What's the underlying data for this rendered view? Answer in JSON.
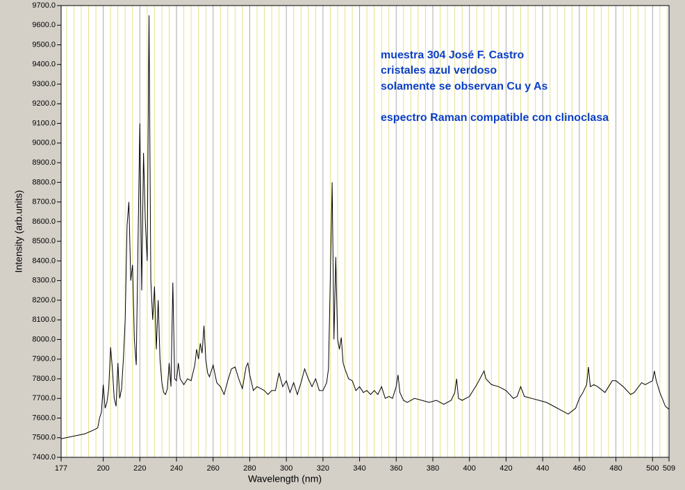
{
  "chart_data": {
    "type": "line",
    "annotation": [
      "muestra 304 José F. Castro",
      "cristales azul verdoso",
      "solamente se observan Cu y As",
      "espectro Raman compatible con clinoclasa"
    ],
    "xlabel": "Wavelength (nm)",
    "ylabel": "Intensity (arb.units)",
    "xlim": [
      177,
      509
    ],
    "ylim": [
      7400,
      9700
    ],
    "xticks": [
      177,
      200,
      220,
      240,
      260,
      280,
      300,
      320,
      340,
      360,
      380,
      400,
      420,
      440,
      460,
      480,
      500,
      509
    ],
    "x_minor_grid": [
      180,
      184,
      188,
      192,
      196,
      204,
      208,
      212,
      216,
      224,
      228,
      232,
      236,
      244,
      248,
      252,
      256,
      264,
      268,
      272,
      276,
      284,
      288,
      292,
      296,
      304,
      308,
      312,
      316,
      324,
      328,
      332,
      336,
      344,
      348,
      352,
      356,
      364,
      368,
      372,
      376,
      384,
      388,
      392,
      396,
      404,
      408,
      412,
      416,
      424,
      428,
      432,
      436,
      444,
      448,
      452,
      456,
      464,
      468,
      472,
      476,
      484,
      488,
      492,
      496,
      504,
      508
    ],
    "yticks": [
      {
        "value": 7400,
        "label": "7400.0"
      },
      {
        "value": 7500,
        "label": "7500.0"
      },
      {
        "value": 7600,
        "label": "7600.0"
      },
      {
        "value": 7700,
        "label": "7700.0"
      },
      {
        "value": 7800,
        "label": "7800.0"
      },
      {
        "value": 7900,
        "label": "7900.0"
      },
      {
        "value": 8000,
        "label": "8000.0"
      },
      {
        "value": 8100,
        "label": "8100.0"
      },
      {
        "value": 8200,
        "label": "8200.0"
      },
      {
        "value": 8300,
        "label": "8300.0"
      },
      {
        "value": 8400,
        "label": "8400.0"
      },
      {
        "value": 8500,
        "label": "8500.0"
      },
      {
        "value": 8600,
        "label": "8600.0"
      },
      {
        "value": 8700,
        "label": "8700.0"
      },
      {
        "value": 8800,
        "label": "8800.0"
      },
      {
        "value": 8900,
        "label": "8900.0"
      },
      {
        "value": 9000,
        "label": "9000.0"
      },
      {
        "value": 9100,
        "label": "9100.0"
      },
      {
        "value": 9200,
        "label": "9200.0"
      },
      {
        "value": 9300,
        "label": "9300.0"
      },
      {
        "value": 9400,
        "label": "9400.0"
      },
      {
        "value": 9500,
        "label": "9500.0"
      },
      {
        "value": 9600,
        "label": "9600.0"
      },
      {
        "value": 9700,
        "label": "9700.0"
      }
    ],
    "grid": true,
    "color": "#000000",
    "grid_color": "#a9a9a9",
    "minor_grid_color": "#e6e08a",
    "annotation_color": "#0b3fc4",
    "x": [
      177,
      185,
      190,
      195,
      197,
      198,
      199,
      200,
      201,
      202,
      203,
      204,
      205,
      206,
      207,
      208,
      209,
      210,
      211,
      212,
      213,
      214,
      215,
      216,
      217,
      218,
      219,
      220,
      221,
      222,
      223,
      224,
      225,
      226,
      227,
      228,
      229,
      230,
      231,
      232,
      233,
      234,
      235,
      236,
      237,
      238,
      239,
      240,
      241,
      242,
      244,
      246,
      248,
      250,
      251,
      252,
      253,
      254,
      255,
      256,
      257,
      258,
      260,
      262,
      264,
      266,
      268,
      270,
      272,
      274,
      276,
      278,
      279,
      280,
      282,
      284,
      286,
      288,
      290,
      292,
      294,
      296,
      298,
      300,
      302,
      304,
      306,
      308,
      310,
      312,
      314,
      316,
      318,
      320,
      322,
      323,
      324,
      325,
      326,
      327,
      328,
      329,
      330,
      331,
      332,
      334,
      336,
      338,
      340,
      342,
      344,
      346,
      348,
      350,
      352,
      354,
      356,
      358,
      360,
      361,
      362,
      364,
      366,
      370,
      374,
      378,
      382,
      386,
      390,
      392,
      393,
      394,
      396,
      400,
      404,
      408,
      409,
      412,
      416,
      420,
      424,
      426,
      428,
      430,
      434,
      438,
      442,
      446,
      450,
      454,
      458,
      460,
      462,
      464,
      465,
      466,
      468,
      470,
      474,
      478,
      480,
      484,
      488,
      490,
      494,
      496,
      500,
      501,
      502,
      504,
      507,
      509
    ],
    "values": [
      7495,
      7510,
      7520,
      7540,
      7550,
      7600,
      7630,
      7770,
      7650,
      7680,
      7750,
      7960,
      7850,
      7700,
      7660,
      7880,
      7700,
      7750,
      7900,
      8100,
      8580,
      8700,
      8300,
      8380,
      8000,
      7870,
      8500,
      9100,
      8250,
      8950,
      8600,
      8400,
      9650,
      8300,
      8100,
      8270,
      7950,
      8200,
      7900,
      7780,
      7730,
      7720,
      7750,
      7880,
      7760,
      8290,
      7800,
      7790,
      7880,
      7800,
      7770,
      7800,
      7790,
      7870,
      7950,
      7900,
      7980,
      7930,
      8070,
      7900,
      7830,
      7810,
      7870,
      7780,
      7760,
      7720,
      7790,
      7850,
      7860,
      7800,
      7750,
      7860,
      7880,
      7820,
      7740,
      7760,
      7750,
      7740,
      7720,
      7740,
      7740,
      7830,
      7760,
      7790,
      7730,
      7780,
      7720,
      7780,
      7850,
      7800,
      7760,
      7800,
      7740,
      7740,
      7780,
      7850,
      8300,
      8800,
      8000,
      8420,
      8000,
      7950,
      8010,
      7880,
      7850,
      7800,
      7790,
      7740,
      7760,
      7730,
      7740,
      7720,
      7740,
      7720,
      7760,
      7700,
      7710,
      7700,
      7760,
      7820,
      7730,
      7690,
      7680,
      7700,
      7690,
      7680,
      7690,
      7670,
      7690,
      7730,
      7800,
      7700,
      7690,
      7710,
      7770,
      7840,
      7800,
      7770,
      7760,
      7740,
      7700,
      7710,
      7760,
      7710,
      7700,
      7690,
      7680,
      7660,
      7640,
      7620,
      7650,
      7700,
      7730,
      7770,
      7860,
      7760,
      7770,
      7760,
      7730,
      7790,
      7790,
      7760,
      7720,
      7730,
      7780,
      7770,
      7790,
      7840,
      7790,
      7730,
      7660,
      7645
    ]
  }
}
